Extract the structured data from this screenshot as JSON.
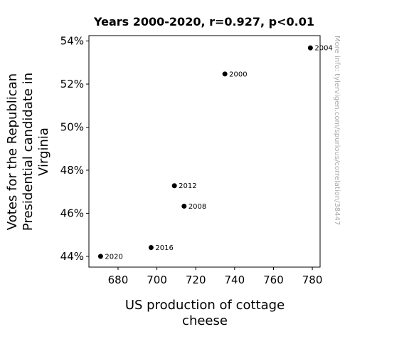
{
  "chart_data": {
    "type": "scatter",
    "title": "Years 2000-2020, r=0.927, p<0.01",
    "xlabel": [
      "US production of cottage",
      "cheese"
    ],
    "ylabel": [
      "Votes for the Republican",
      "Presidential candidate in",
      "Virginia"
    ],
    "xlim": [
      665,
      784
    ],
    "ylim": [
      43.5,
      54.25
    ],
    "x_ticks": [
      680,
      700,
      720,
      740,
      760,
      780
    ],
    "y_ticks": [
      44,
      46,
      48,
      50,
      52,
      54
    ],
    "y_tick_suffix": "%",
    "grid": false,
    "points": [
      {
        "label": "2000",
        "x": 735,
        "y": 52.47
      },
      {
        "label": "2004",
        "x": 779,
        "y": 53.68
      },
      {
        "label": "2008",
        "x": 714,
        "y": 46.33
      },
      {
        "label": "2012",
        "x": 709,
        "y": 47.28
      },
      {
        "label": "2016",
        "x": 697,
        "y": 44.41
      },
      {
        "label": "2020",
        "x": 671,
        "y": 44.0
      }
    ],
    "marker_color": "#000000"
  },
  "watermark": "More info: tylervigen.com/spurious/correlation/38447"
}
